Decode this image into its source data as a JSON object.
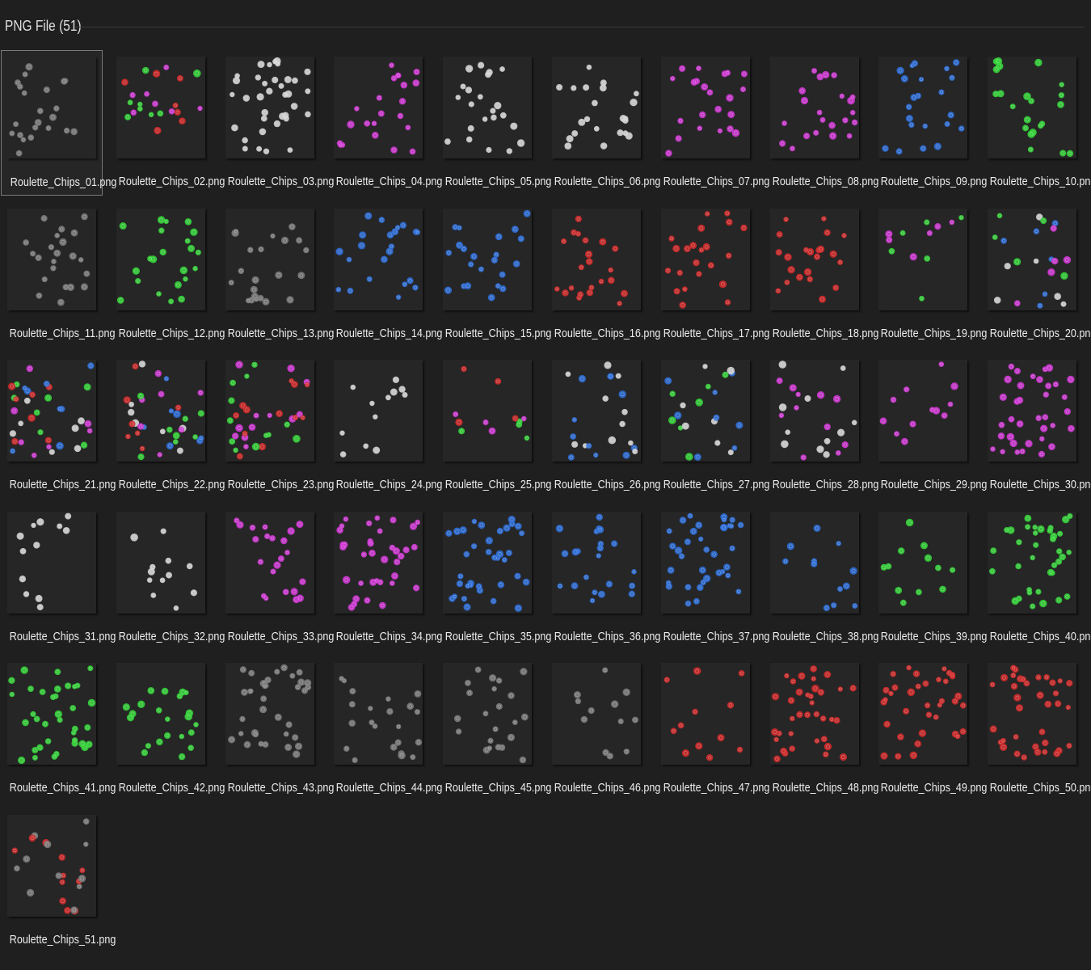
{
  "group": {
    "title": "PNG File (51)"
  },
  "palette": {
    "white": "#d4d4d4",
    "gray": "#7c7c7c",
    "green": "#35d43a",
    "magenta": "#d23ad6",
    "blue": "#2f6fd8",
    "red": "#d22b2b",
    "thumb_bg": "#262626",
    "page_bg": "#1f1f1f"
  },
  "files": [
    {
      "name": "Roulette_Chips_01.png",
      "selected": true,
      "colors": [
        "gray"
      ],
      "density": "medium"
    },
    {
      "name": "Roulette_Chips_02.png",
      "colors": [
        "green",
        "magenta",
        "red"
      ],
      "density": "medium"
    },
    {
      "name": "Roulette_Chips_03.png",
      "colors": [
        "white"
      ],
      "density": "high"
    },
    {
      "name": "Roulette_Chips_04.png",
      "colors": [
        "magenta"
      ],
      "density": "medium"
    },
    {
      "name": "Roulette_Chips_05.png",
      "colors": [
        "white"
      ],
      "density": "medium"
    },
    {
      "name": "Roulette_Chips_06.png",
      "colors": [
        "white"
      ],
      "density": "medium"
    },
    {
      "name": "Roulette_Chips_07.png",
      "colors": [
        "magenta"
      ],
      "density": "medium"
    },
    {
      "name": "Roulette_Chips_08.png",
      "colors": [
        "magenta"
      ],
      "density": "medium"
    },
    {
      "name": "Roulette_Chips_09.png",
      "colors": [
        "blue"
      ],
      "density": "medium"
    },
    {
      "name": "Roulette_Chips_10.png",
      "colors": [
        "green"
      ],
      "density": "medium"
    },
    {
      "name": "Roulette_Chips_11.png",
      "colors": [
        "gray"
      ],
      "density": "medium"
    },
    {
      "name": "Roulette_Chips_12.png",
      "colors": [
        "green"
      ],
      "density": "medium"
    },
    {
      "name": "Roulette_Chips_13.png",
      "colors": [
        "gray"
      ],
      "density": "medium"
    },
    {
      "name": "Roulette_Chips_14.png",
      "colors": [
        "blue"
      ],
      "density": "medium"
    },
    {
      "name": "Roulette_Chips_15.png",
      "colors": [
        "blue"
      ],
      "density": "medium"
    },
    {
      "name": "Roulette_Chips_16.png",
      "colors": [
        "red"
      ],
      "density": "medium"
    },
    {
      "name": "Roulette_Chips_17.png",
      "colors": [
        "red"
      ],
      "density": "medium"
    },
    {
      "name": "Roulette_Chips_18.png",
      "colors": [
        "red"
      ],
      "density": "medium"
    },
    {
      "name": "Roulette_Chips_19.png",
      "colors": [
        "green",
        "magenta"
      ],
      "density": "low"
    },
    {
      "name": "Roulette_Chips_20.png",
      "colors": [
        "blue",
        "white",
        "magenta",
        "green"
      ],
      "density": "medium"
    },
    {
      "name": "Roulette_Chips_21.png",
      "colors": [
        "blue",
        "magenta",
        "green",
        "red",
        "white"
      ],
      "density": "high"
    },
    {
      "name": "Roulette_Chips_22.png",
      "colors": [
        "green",
        "red",
        "blue",
        "white",
        "magenta"
      ],
      "density": "high"
    },
    {
      "name": "Roulette_Chips_23.png",
      "colors": [
        "magenta",
        "green",
        "red"
      ],
      "density": "high"
    },
    {
      "name": "Roulette_Chips_24.png",
      "colors": [
        "white"
      ],
      "density": "low"
    },
    {
      "name": "Roulette_Chips_25.png",
      "colors": [
        "green",
        "magenta",
        "red"
      ],
      "density": "low"
    },
    {
      "name": "Roulette_Chips_26.png",
      "colors": [
        "blue",
        "white"
      ],
      "density": "medium"
    },
    {
      "name": "Roulette_Chips_27.png",
      "colors": [
        "blue",
        "green",
        "white"
      ],
      "density": "medium"
    },
    {
      "name": "Roulette_Chips_28.png",
      "colors": [
        "white",
        "magenta"
      ],
      "density": "medium"
    },
    {
      "name": "Roulette_Chips_29.png",
      "colors": [
        "magenta"
      ],
      "density": "low"
    },
    {
      "name": "Roulette_Chips_30.png",
      "colors": [
        "magenta"
      ],
      "density": "high"
    },
    {
      "name": "Roulette_Chips_31.png",
      "colors": [
        "white"
      ],
      "density": "low"
    },
    {
      "name": "Roulette_Chips_32.png",
      "colors": [
        "white"
      ],
      "density": "low"
    },
    {
      "name": "Roulette_Chips_33.png",
      "colors": [
        "magenta"
      ],
      "density": "medium"
    },
    {
      "name": "Roulette_Chips_34.png",
      "colors": [
        "magenta"
      ],
      "density": "high"
    },
    {
      "name": "Roulette_Chips_35.png",
      "colors": [
        "blue"
      ],
      "density": "high"
    },
    {
      "name": "Roulette_Chips_36.png",
      "colors": [
        "blue"
      ],
      "density": "medium"
    },
    {
      "name": "Roulette_Chips_37.png",
      "colors": [
        "blue"
      ],
      "density": "high"
    },
    {
      "name": "Roulette_Chips_38.png",
      "colors": [
        "blue"
      ],
      "density": "low"
    },
    {
      "name": "Roulette_Chips_39.png",
      "colors": [
        "green"
      ],
      "density": "low"
    },
    {
      "name": "Roulette_Chips_40.png",
      "colors": [
        "green"
      ],
      "density": "high"
    },
    {
      "name": "Roulette_Chips_41.png",
      "colors": [
        "green"
      ],
      "density": "high"
    },
    {
      "name": "Roulette_Chips_42.png",
      "colors": [
        "green"
      ],
      "density": "medium"
    },
    {
      "name": "Roulette_Chips_43.png",
      "colors": [
        "gray"
      ],
      "density": "high"
    },
    {
      "name": "Roulette_Chips_44.png",
      "colors": [
        "gray"
      ],
      "density": "medium"
    },
    {
      "name": "Roulette_Chips_45.png",
      "colors": [
        "gray"
      ],
      "density": "medium"
    },
    {
      "name": "Roulette_Chips_46.png",
      "colors": [
        "gray"
      ],
      "density": "low"
    },
    {
      "name": "Roulette_Chips_47.png",
      "colors": [
        "red"
      ],
      "density": "low"
    },
    {
      "name": "Roulette_Chips_48.png",
      "colors": [
        "red"
      ],
      "density": "high"
    },
    {
      "name": "Roulette_Chips_49.png",
      "colors": [
        "red"
      ],
      "density": "high"
    },
    {
      "name": "Roulette_Chips_50.png",
      "colors": [
        "red"
      ],
      "density": "high"
    },
    {
      "name": "Roulette_Chips_51.png",
      "colors": [
        "red",
        "gray"
      ],
      "density": "medium"
    }
  ]
}
